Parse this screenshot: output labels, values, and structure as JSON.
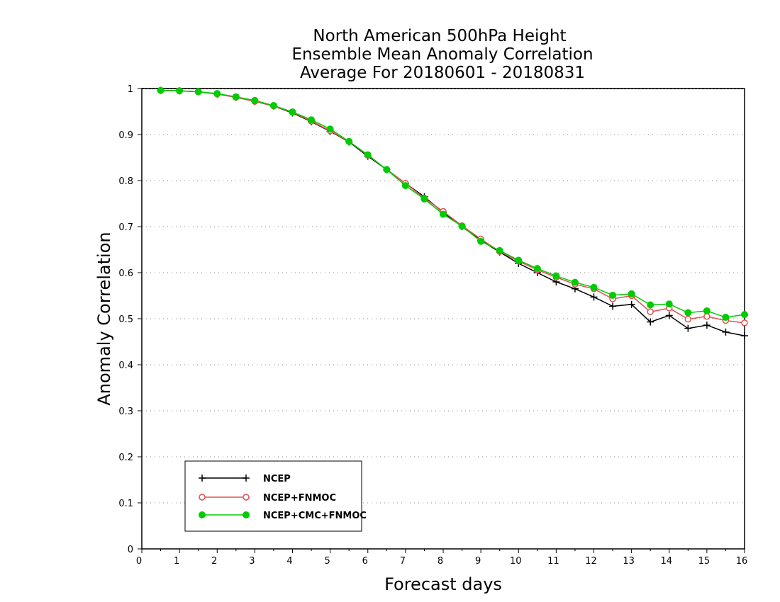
{
  "chart_data": {
    "type": "line",
    "title_lines": [
      "North American 500hPa Height",
      "Ensemble Mean Anomaly Correlation",
      "Average For 20180601 - 20180831"
    ],
    "xlabel": "Forecast days",
    "ylabel": "Anomaly Correlation",
    "xlim": [
      0,
      16
    ],
    "ylim": [
      0,
      1
    ],
    "x_ticks": [
      "0",
      "1",
      "2",
      "3",
      "4",
      "5",
      "6",
      "7",
      "8",
      "9",
      "10",
      "11",
      "12",
      "13",
      "14",
      "15",
      "16"
    ],
    "y_ticks": [
      "0",
      "0.1",
      "0.2",
      "0.3",
      "0.4",
      "0.5",
      "0.6",
      "0.7",
      "0.8",
      "0.9",
      "1"
    ],
    "grid": "horizontal dotted",
    "legend_position": "bottom-left",
    "x": [
      0.5,
      1,
      1.5,
      2,
      2.5,
      3,
      3.5,
      4,
      4.5,
      5,
      5.5,
      6,
      6.5,
      7,
      7.5,
      8,
      8.5,
      9,
      9.5,
      10,
      10.5,
      11,
      11.5,
      12,
      12.5,
      13,
      13.5,
      14,
      14.5,
      15,
      15.5,
      16
    ],
    "series": [
      {
        "name": "NCEP",
        "color": "#000000",
        "marker": "plus",
        "values": [
          0.996,
          0.995,
          0.993,
          0.988,
          0.981,
          0.972,
          0.962,
          0.947,
          0.928,
          0.907,
          0.884,
          0.853,
          0.824,
          0.794,
          0.765,
          0.731,
          0.7,
          0.67,
          0.645,
          0.62,
          0.6,
          0.58,
          0.565,
          0.547,
          0.527,
          0.531,
          0.493,
          0.507,
          0.479,
          0.486,
          0.471,
          0.463
        ]
      },
      {
        "name": "NCEP+FNMOC",
        "color": "#e0504f",
        "marker": "open-circle",
        "values": [
          0.996,
          0.995,
          0.993,
          0.988,
          0.981,
          0.972,
          0.962,
          0.948,
          0.929,
          0.908,
          0.885,
          0.855,
          0.824,
          0.794,
          0.762,
          0.733,
          0.702,
          0.673,
          0.646,
          0.625,
          0.606,
          0.59,
          0.575,
          0.565,
          0.543,
          0.55,
          0.515,
          0.523,
          0.499,
          0.505,
          0.496,
          0.491
        ]
      },
      {
        "name": "NCEP+CMC+FNMOC",
        "color": "#00cc00",
        "marker": "filled-circle",
        "values": [
          0.996,
          0.995,
          0.993,
          0.989,
          0.982,
          0.974,
          0.963,
          0.949,
          0.932,
          0.912,
          0.885,
          0.856,
          0.824,
          0.789,
          0.76,
          0.727,
          0.701,
          0.668,
          0.648,
          0.627,
          0.609,
          0.593,
          0.579,
          0.568,
          0.551,
          0.554,
          0.53,
          0.532,
          0.513,
          0.517,
          0.503,
          0.509
        ]
      }
    ]
  }
}
